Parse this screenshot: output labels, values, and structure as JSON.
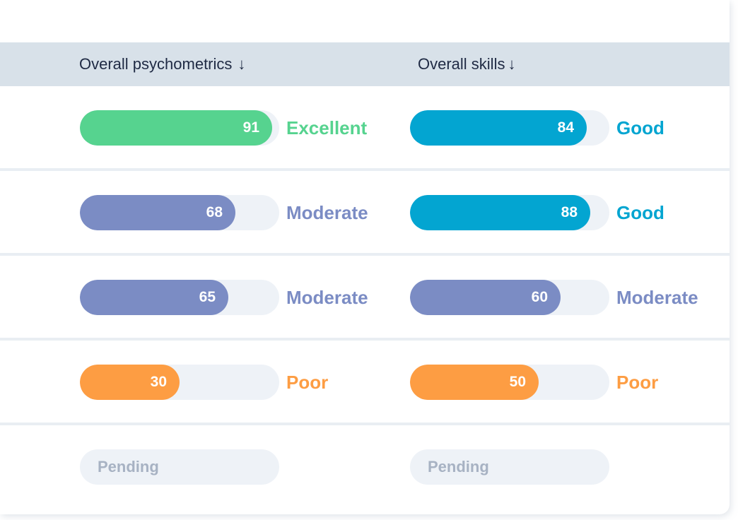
{
  "columns": [
    {
      "label": "Overall psychometrics",
      "sort_arrow": "↓"
    },
    {
      "label": "Overall skills",
      "sort_arrow": "↓"
    }
  ],
  "colors": {
    "excellent": "#56d38f",
    "good": "#03a5d1",
    "moderate": "#7b8cc4",
    "poor": "#fd9d43",
    "track": "#eef2f7",
    "pending_text": "#a7b2c3",
    "header_bg": "#d8e1e9"
  },
  "rows": [
    {
      "psychometrics": {
        "score": 91,
        "fraction": 0.965,
        "rating": "Excellent",
        "color": "#56d38f"
      },
      "skills": {
        "score": 84,
        "fraction": 0.885,
        "rating": "Good",
        "color": "#03a5d1"
      }
    },
    {
      "psychometrics": {
        "score": 68,
        "fraction": 0.78,
        "rating": "Moderate",
        "color": "#7b8cc4"
      },
      "skills": {
        "score": 88,
        "fraction": 0.905,
        "rating": "Good",
        "color": "#03a5d1"
      }
    },
    {
      "psychometrics": {
        "score": 65,
        "fraction": 0.745,
        "rating": "Moderate",
        "color": "#7b8cc4"
      },
      "skills": {
        "score": 60,
        "fraction": 0.755,
        "rating": "Moderate",
        "color": "#7b8cc4"
      }
    },
    {
      "psychometrics": {
        "score": 30,
        "fraction": 0.5,
        "rating": "Poor",
        "color": "#fd9d43"
      },
      "skills": {
        "score": 50,
        "fraction": 0.645,
        "rating": "Poor",
        "color": "#fd9d43"
      }
    },
    {
      "psychometrics": {
        "pending": "Pending"
      },
      "skills": {
        "pending": "Pending"
      }
    }
  ]
}
